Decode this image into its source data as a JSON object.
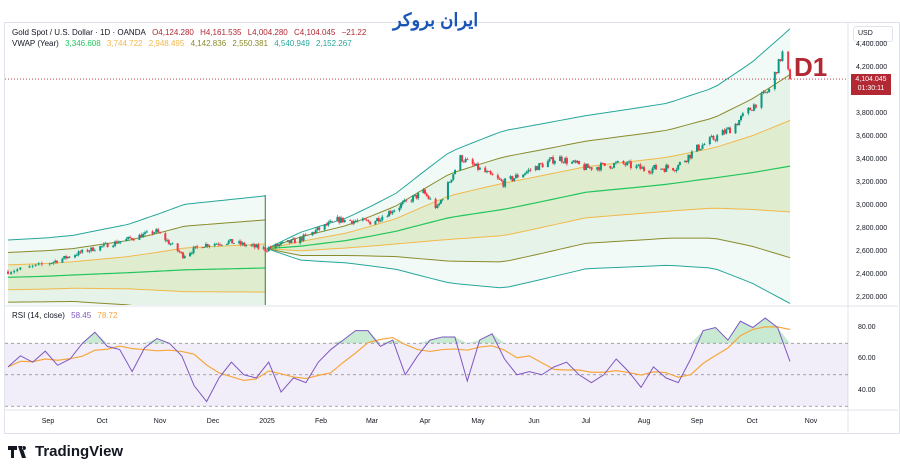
{
  "header": {
    "symbol": "Gold Spot / U.S. Dollar · 1D · OANDA",
    "open": "O4,124.280",
    "high": "H4,161.535",
    "low": "L4,004.280",
    "close": "C4,104.045",
    "change": "−21.22"
  },
  "vwap_legend": {
    "label": "VWAP (Year)",
    "values": [
      "3,346.608",
      "3,744.722",
      "2,948.495",
      "4,142.836",
      "2,550.381",
      "4,540.949",
      "2,152.267"
    ],
    "colors": [
      "#22c55e",
      "#f2b84b",
      "#f2b84b",
      "#8a8a2a",
      "#8a8a2a",
      "#26a69a",
      "#26a69a"
    ]
  },
  "rsi_legend": {
    "label": "RSI (14, close)",
    "rsi": "58.45",
    "ma": "78.72"
  },
  "watermark": {
    "logo_text": "ایران بروکر"
  },
  "annotation": "D1",
  "price_axis": {
    "currency": "USD",
    "labels": [
      "4,400.000",
      "4,200.000",
      "3,800.000",
      "3,600.000",
      "3,400.000",
      "3,200.000",
      "3,000.000",
      "2,800.000",
      "2,600.000",
      "2,400.000",
      "2,200.000"
    ],
    "current_price": "4,104.045",
    "countdown": "01:30:11"
  },
  "rsi_axis": {
    "labels": [
      "80.00",
      "60.00",
      "40.00"
    ]
  },
  "time_axis": [
    "Sep",
    "Oct",
    "Nov",
    "Dec",
    "2025",
    "Feb",
    "Mar",
    "Apr",
    "May",
    "Jun",
    "Jul",
    "Aug",
    "Sep",
    "Oct",
    "Nov"
  ],
  "brand": "TradingView",
  "colors": {
    "up": "#089981",
    "down": "#f23645",
    "rsi": "#7e57c2",
    "rsi_ma": "#f7a63b",
    "accent": "#b22833"
  },
  "chart_data": {
    "type": "candlestick",
    "title": "Gold Spot / U.S. Dollar · 1D · OANDA",
    "ylim": [
      2150,
      4500
    ],
    "price_path": [
      [
        "2024-08-19",
        2430
      ],
      [
        "2024-09-01",
        2500
      ],
      [
        "2024-09-20",
        2600
      ],
      [
        "2024-10-01",
        2650
      ],
      [
        "2024-10-30",
        2780
      ],
      [
        "2024-11-14",
        2570
      ],
      [
        "2024-11-25",
        2660
      ],
      [
        "2024-12-10",
        2690
      ],
      [
        "2024-12-31",
        2625
      ],
      [
        "2025-01-20",
        2710
      ],
      [
        "2025-02-10",
        2880
      ],
      [
        "2025-03-01",
        2860
      ],
      [
        "2025-03-31",
        3120
      ],
      [
        "2025-04-08",
        2980
      ],
      [
        "2025-04-21",
        3420
      ],
      [
        "2025-05-15",
        3200
      ],
      [
        "2025-06-01",
        3330
      ],
      [
        "2025-06-15",
        3420
      ],
      [
        "2025-07-01",
        3330
      ],
      [
        "2025-07-20",
        3370
      ],
      [
        "2025-08-01",
        3320
      ],
      [
        "2025-08-20",
        3340
      ],
      [
        "2025-09-01",
        3500
      ],
      [
        "2025-09-20",
        3680
      ],
      [
        "2025-10-01",
        3860
      ],
      [
        "2025-10-10",
        4010
      ],
      [
        "2025-10-17",
        4330
      ],
      [
        "2025-10-21",
        4104
      ]
    ],
    "vwap_segments": [
      {
        "anchor": "2024",
        "points": [
          [
            "2024-08-19",
            2380,
            108
          ],
          [
            "2024-09-15",
            2400,
            115
          ],
          [
            "2024-10-15",
            2420,
            140
          ],
          [
            "2024-11-15",
            2445,
            190
          ],
          [
            "2024-12-31",
            2461,
            209
          ]
        ]
      },
      {
        "anchor": "2025",
        "points": [
          [
            "2025-01-01",
            2630,
            0
          ],
          [
            "2025-01-20",
            2650,
            40
          ],
          [
            "2025-02-15",
            2700,
            65
          ],
          [
            "2025-03-15",
            2780,
            110
          ],
          [
            "2025-04-15",
            2900,
            190
          ],
          [
            "2025-05-15",
            2970,
            228
          ],
          [
            "2025-07-01",
            3120,
            222
          ],
          [
            "2025-08-15",
            3190,
            235
          ],
          [
            "2025-09-10",
            3243,
            261
          ],
          [
            "2025-10-01",
            3290,
            320
          ],
          [
            "2025-10-21",
            3346.608,
            398.114
          ]
        ]
      }
    ],
    "band_multipliers": [
      1,
      2,
      3
    ],
    "rsi": {
      "overbought": 70,
      "middle": 50,
      "oversold": 30,
      "ylim": [
        25,
        92
      ],
      "values": [
        55,
        62,
        58,
        65,
        56,
        60,
        70,
        77,
        68,
        66,
        52,
        67,
        73,
        70,
        62,
        43,
        33,
        48,
        58,
        50,
        48,
        58,
        39,
        48,
        45,
        58,
        66,
        72,
        78,
        78,
        68,
        72,
        50,
        62,
        72,
        74,
        74,
        46,
        72,
        76,
        60,
        50,
        52,
        50,
        55,
        58,
        50,
        45,
        50,
        60,
        52,
        42,
        55,
        48,
        45,
        60,
        78,
        80,
        72,
        84,
        80,
        86,
        80,
        58.45
      ]
    }
  }
}
